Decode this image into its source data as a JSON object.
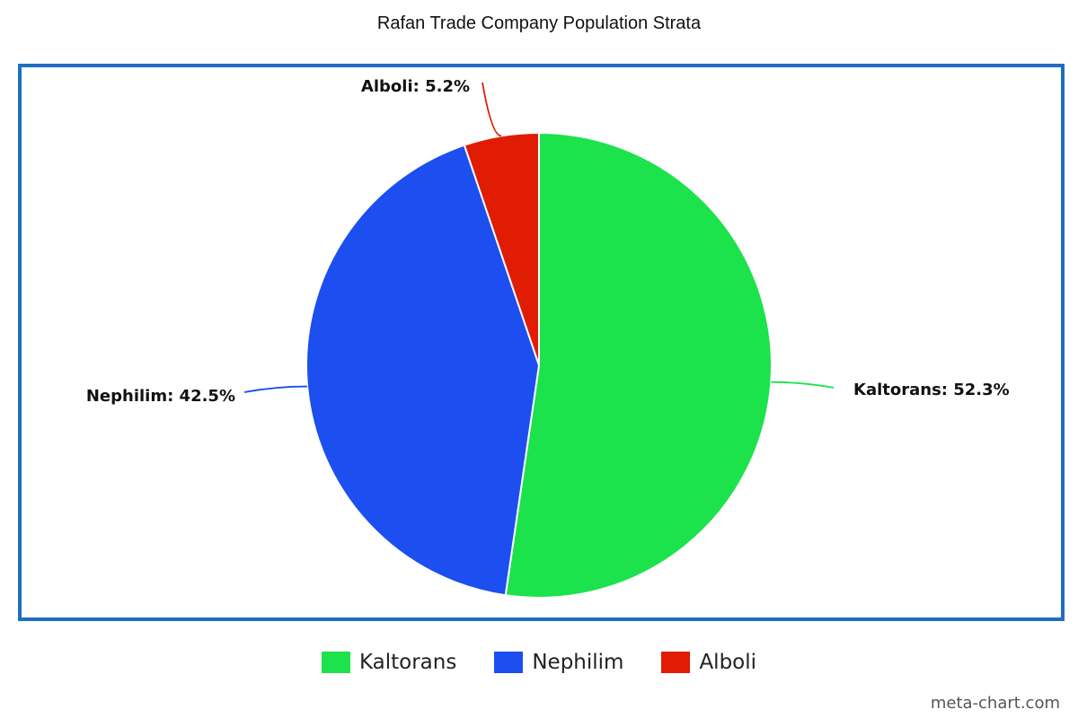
{
  "chart_data": {
    "type": "pie",
    "title": "Rafan Trade Company Population Strata",
    "slices": [
      {
        "name": "Kaltorans",
        "value": 52.3,
        "label": "Kaltorans: 52.3%",
        "color": "#1ce24b"
      },
      {
        "name": "Nephilim",
        "value": 42.5,
        "label": "Nephilim: 42.5%",
        "color": "#1c4ef0"
      },
      {
        "name": "Alboli",
        "value": 5.2,
        "label": "Alboli: 5.2%",
        "color": "#e01c03"
      }
    ],
    "legend_position": "bottom-center"
  },
  "legend": {
    "items": [
      {
        "label": "Kaltorans",
        "color": "#1ce24b"
      },
      {
        "label": "Nephilim",
        "color": "#1c4ef0"
      },
      {
        "label": "Alboli",
        "color": "#e01c03"
      }
    ]
  },
  "watermark": "meta-chart.com",
  "colors": {
    "frame_border": "#1f6fc0"
  }
}
